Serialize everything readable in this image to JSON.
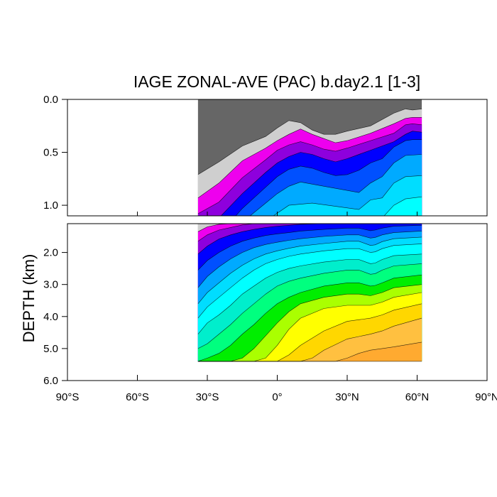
{
  "chart_data": {
    "type": "contour",
    "title": "IAGE ZONAL-AVE (PAC) b.day2.1 [1-3]",
    "ylabel": "DEPTH (km)",
    "xlabel": "",
    "xlim": [
      -90,
      90
    ],
    "x_ticks": [
      -90,
      -60,
      -30,
      0,
      30,
      60,
      90
    ],
    "x_tick_labels": [
      "90°S",
      "60°S",
      "30°S",
      "0°",
      "30°N",
      "60°N",
      "90°N"
    ],
    "data_extent_lat": [
      -34,
      62
    ],
    "upper_panel": {
      "ylim": [
        0.0,
        1.1
      ],
      "y_ticks": [
        0.0,
        0.5,
        1.0
      ],
      "y_tick_labels": [
        "0.0",
        "0.5",
        "1.0"
      ]
    },
    "lower_panel": {
      "ylim": [
        1.1,
        6.0
      ],
      "y_ticks": [
        2.0,
        3.0,
        4.0,
        5.0,
        6.0
      ],
      "y_tick_labels": [
        "2.0",
        "3.0",
        "4.0",
        "5.0",
        "6.0"
      ]
    },
    "colors": [
      "#666666",
      "#cfcfcf",
      "#ee00ee",
      "#8e00dd",
      "#0000ff",
      "#0050ff",
      "#00aaff",
      "#00ddff",
      "#00ffff",
      "#00eecc",
      "#00ff7f",
      "#00ee00",
      "#aaff00",
      "#ffff00",
      "#ffd700",
      "#ffc040",
      "#ffaa30",
      "#ff9520",
      "#f07800"
    ],
    "isolines_upper": [
      {
        "level": 1,
        "lat": [
          -34,
          -25,
          -15,
          -5,
          0,
          5,
          10,
          15,
          20,
          25,
          30,
          40,
          50,
          55,
          58,
          62
        ],
        "depth": [
          0.71,
          0.59,
          0.44,
          0.35,
          0.27,
          0.2,
          0.22,
          0.29,
          0.33,
          0.33,
          0.3,
          0.25,
          0.13,
          0.09,
          0.1,
          0.09
        ]
      },
      {
        "level": 2,
        "lat": [
          -34,
          -25,
          -15,
          -5,
          0,
          5,
          10,
          15,
          20,
          25,
          30,
          40,
          50,
          55,
          58,
          62
        ],
        "depth": [
          0.93,
          0.79,
          0.58,
          0.46,
          0.39,
          0.33,
          0.28,
          0.33,
          0.37,
          0.41,
          0.39,
          0.32,
          0.23,
          0.18,
          0.17,
          0.17
        ]
      },
      {
        "level": 3,
        "lat": [
          -34,
          -25,
          -15,
          -5,
          0,
          5,
          10,
          15,
          20,
          25,
          30,
          40,
          50,
          55,
          58,
          62
        ],
        "depth": [
          1.08,
          0.97,
          0.74,
          0.57,
          0.48,
          0.43,
          0.4,
          0.43,
          0.47,
          0.49,
          0.46,
          0.39,
          0.32,
          0.24,
          0.23,
          0.24
        ]
      },
      {
        "level": 4,
        "lat": [
          -34,
          -25,
          -15,
          -5,
          0,
          5,
          10,
          15,
          20,
          25,
          30,
          40,
          50,
          55,
          58,
          62
        ],
        "depth": [
          1.3,
          1.12,
          0.89,
          0.69,
          0.6,
          0.54,
          0.5,
          0.52,
          0.56,
          0.59,
          0.56,
          0.48,
          0.4,
          0.33,
          0.3,
          0.31
        ]
      },
      {
        "level": 5,
        "lat": [
          -34,
          -25,
          -15,
          -5,
          0,
          5,
          10,
          15,
          20,
          25,
          30,
          35,
          40,
          45,
          50,
          55,
          58,
          62
        ],
        "depth": [
          1.5,
          1.28,
          1.03,
          0.83,
          0.73,
          0.66,
          0.63,
          0.65,
          0.69,
          0.72,
          0.71,
          0.67,
          0.6,
          0.56,
          0.45,
          0.39,
          0.38,
          0.38
        ]
      },
      {
        "level": 6,
        "lat": [
          -34,
          -25,
          -15,
          -5,
          0,
          5,
          10,
          20,
          30,
          35,
          40,
          45,
          50,
          55,
          62
        ],
        "depth": [
          1.7,
          1.44,
          1.16,
          0.98,
          0.89,
          0.82,
          0.78,
          0.82,
          0.86,
          0.88,
          0.79,
          0.73,
          0.6,
          0.53,
          0.52
        ]
      },
      {
        "level": 7,
        "lat": [
          -34,
          -25,
          -15,
          -5,
          5,
          15,
          25,
          35,
          40,
          45,
          50,
          55,
          62
        ],
        "depth": [
          1.9,
          1.62,
          1.33,
          1.15,
          1.0,
          0.98,
          1.01,
          1.04,
          0.95,
          0.93,
          0.79,
          0.73,
          0.72
        ]
      },
      {
        "level": 8,
        "lat": [
          -34,
          -25,
          -15,
          -5,
          5,
          15,
          25,
          35,
          40,
          45,
          50,
          55,
          62
        ],
        "depth": [
          2.1,
          1.8,
          1.52,
          1.33,
          1.2,
          1.17,
          1.2,
          1.21,
          1.13,
          1.12,
          1.0,
          0.94,
          0.92
        ]
      },
      {
        "level": 9,
        "lat": [
          -34,
          -25,
          -15,
          -5,
          5,
          15,
          25,
          35,
          40,
          45,
          50,
          55,
          62
        ],
        "depth": [
          2.35,
          2.0,
          1.72,
          1.52,
          1.4,
          1.37,
          1.4,
          1.42,
          1.33,
          1.32,
          1.22,
          1.16,
          1.12
        ]
      }
    ],
    "isolines_lower": [
      {
        "level": 1,
        "lat": [
          -34,
          -25,
          -15,
          -5,
          5,
          20,
          40,
          62
        ],
        "depth": [
          1.1,
          1.1,
          1.1,
          1.1,
          1.1,
          1.1,
          1.1,
          1.1
        ]
      },
      {
        "level": 2,
        "lat": [
          -34,
          -30,
          -25,
          -20,
          -15,
          -10,
          -5,
          0,
          5,
          10,
          20,
          30,
          40,
          62
        ],
        "depth": [
          1.35,
          1.2,
          1.12,
          1.1,
          1.1,
          1.1,
          1.1,
          1.1,
          1.1,
          1.1,
          1.1,
          1.1,
          1.1,
          1.1
        ]
      },
      {
        "level": 3,
        "lat": [
          -34,
          -30,
          -25,
          -20,
          -15,
          -10,
          -5,
          0,
          5,
          10,
          20,
          30,
          35,
          40,
          45,
          50,
          62
        ],
        "depth": [
          1.65,
          1.45,
          1.3,
          1.22,
          1.14,
          1.1,
          1.1,
          1.1,
          1.1,
          1.1,
          1.1,
          1.1,
          1.1,
          1.1,
          1.1,
          1.1,
          1.1
        ]
      },
      {
        "level": 4,
        "lat": [
          -34,
          -30,
          -25,
          -20,
          -15,
          -10,
          -5,
          0,
          5,
          10,
          20,
          30,
          35,
          40,
          45,
          50,
          62
        ],
        "depth": [
          2.05,
          1.8,
          1.58,
          1.45,
          1.35,
          1.28,
          1.22,
          1.18,
          1.15,
          1.12,
          1.1,
          1.1,
          1.1,
          1.1,
          1.1,
          1.1,
          1.1
        ]
      },
      {
        "level": 5,
        "lat": [
          -34,
          -30,
          -25,
          -20,
          -15,
          -10,
          -5,
          0,
          5,
          10,
          20,
          30,
          35,
          40,
          42,
          45,
          50,
          62
        ],
        "depth": [
          2.55,
          2.25,
          2.0,
          1.8,
          1.65,
          1.55,
          1.47,
          1.42,
          1.38,
          1.33,
          1.28,
          1.24,
          1.24,
          1.32,
          1.3,
          1.24,
          1.18,
          1.15
        ]
      },
      {
        "level": 6,
        "lat": [
          -34,
          -30,
          -25,
          -20,
          -15,
          -10,
          -5,
          0,
          5,
          10,
          20,
          30,
          35,
          40,
          42,
          45,
          50,
          62
        ],
        "depth": [
          3.1,
          2.75,
          2.45,
          2.2,
          2.0,
          1.85,
          1.75,
          1.68,
          1.62,
          1.57,
          1.5,
          1.45,
          1.45,
          1.55,
          1.53,
          1.45,
          1.38,
          1.33
        ]
      },
      {
        "level": 7,
        "lat": [
          -34,
          -30,
          -25,
          -20,
          -15,
          -10,
          -5,
          0,
          5,
          10,
          20,
          30,
          35,
          40,
          42,
          45,
          50,
          62
        ],
        "depth": [
          3.6,
          3.25,
          2.95,
          2.65,
          2.4,
          2.2,
          2.05,
          1.95,
          1.87,
          1.8,
          1.72,
          1.65,
          1.65,
          1.78,
          1.76,
          1.66,
          1.57,
          1.52
        ]
      },
      {
        "level": 8,
        "lat": [
          -34,
          -30,
          -25,
          -20,
          -15,
          -10,
          -5,
          0,
          5,
          10,
          20,
          30,
          35,
          40,
          42,
          45,
          50,
          62
        ],
        "depth": [
          4.05,
          3.7,
          3.4,
          3.1,
          2.8,
          2.55,
          2.35,
          2.22,
          2.12,
          2.05,
          1.95,
          1.88,
          1.88,
          2.0,
          1.98,
          1.88,
          1.78,
          1.73
        ]
      },
      {
        "level": 9,
        "lat": [
          -34,
          -30,
          -25,
          -20,
          -15,
          -10,
          -5,
          0,
          5,
          10,
          20,
          30,
          35,
          40,
          42,
          45,
          50,
          62
        ],
        "depth": [
          4.55,
          4.2,
          3.95,
          3.65,
          3.3,
          3.05,
          2.8,
          2.62,
          2.5,
          2.42,
          2.3,
          2.22,
          2.22,
          2.35,
          2.33,
          2.22,
          2.1,
          2.05
        ]
      },
      {
        "level": 10,
        "lat": [
          -34,
          -30,
          -25,
          -20,
          -15,
          -10,
          -5,
          0,
          5,
          10,
          20,
          30,
          35,
          40,
          42,
          45,
          50,
          62
        ],
        "depth": [
          5.0,
          4.85,
          4.55,
          4.25,
          3.9,
          3.6,
          3.3,
          3.05,
          2.9,
          2.8,
          2.65,
          2.55,
          2.55,
          2.68,
          2.66,
          2.55,
          2.42,
          2.35
        ]
      },
      {
        "level": 11,
        "lat": [
          -34,
          -30,
          -25,
          -20,
          -15,
          -10,
          -5,
          0,
          5,
          10,
          20,
          30,
          35,
          40,
          42,
          45,
          50,
          62
        ],
        "depth": [
          5.4,
          5.3,
          5.15,
          4.9,
          4.55,
          4.25,
          3.9,
          3.6,
          3.4,
          3.25,
          3.05,
          2.95,
          2.95,
          3.05,
          3.03,
          2.95,
          2.8,
          2.7
        ]
      },
      {
        "level": 12,
        "lat": [
          -34,
          -25,
          -20,
          -15,
          -10,
          -5,
          0,
          5,
          10,
          20,
          30,
          35,
          40,
          45,
          50,
          62
        ],
        "depth": [
          5.4,
          5.4,
          5.4,
          5.3,
          5.0,
          4.6,
          4.2,
          3.85,
          3.6,
          3.4,
          3.3,
          3.3,
          3.35,
          3.25,
          3.1,
          3.0
        ]
      },
      {
        "level": 13,
        "lat": [
          -34,
          -25,
          -20,
          -15,
          -10,
          -5,
          0,
          5,
          10,
          20,
          30,
          40,
          45,
          50,
          62
        ],
        "depth": [
          5.4,
          5.4,
          5.4,
          5.4,
          5.4,
          5.3,
          4.9,
          4.4,
          4.05,
          3.75,
          3.65,
          3.65,
          3.55,
          3.4,
          3.25
        ]
      },
      {
        "level": 14,
        "lat": [
          -34,
          -20,
          -10,
          -5,
          0,
          5,
          10,
          20,
          30,
          40,
          45,
          50,
          62
        ],
        "depth": [
          5.4,
          5.4,
          5.4,
          5.4,
          5.4,
          5.2,
          4.9,
          4.45,
          4.15,
          4.05,
          3.95,
          3.8,
          3.6
        ]
      },
      {
        "level": 15,
        "lat": [
          -34,
          -20,
          -5,
          5,
          10,
          15,
          20,
          30,
          40,
          45,
          50,
          62
        ],
        "depth": [
          5.4,
          5.4,
          5.4,
          5.4,
          5.4,
          5.3,
          5.05,
          4.7,
          4.55,
          4.45,
          4.3,
          4.05
        ]
      },
      {
        "level": 16,
        "lat": [
          -34,
          -20,
          -5,
          5,
          15,
          25,
          30,
          35,
          40,
          45,
          50,
          62
        ],
        "depth": [
          5.4,
          5.4,
          5.4,
          5.4,
          5.4,
          5.4,
          5.3,
          5.15,
          5.05,
          5.0,
          4.95,
          4.8
        ]
      },
      {
        "level": 17,
        "lat": [
          -34,
          -20,
          -5,
          5,
          15,
          25,
          35,
          40,
          45,
          50,
          55,
          62
        ],
        "depth": [
          5.4,
          5.4,
          5.4,
          5.4,
          5.4,
          5.4,
          5.4,
          5.4,
          5.4,
          5.4,
          5.4,
          5.4
        ]
      }
    ]
  }
}
